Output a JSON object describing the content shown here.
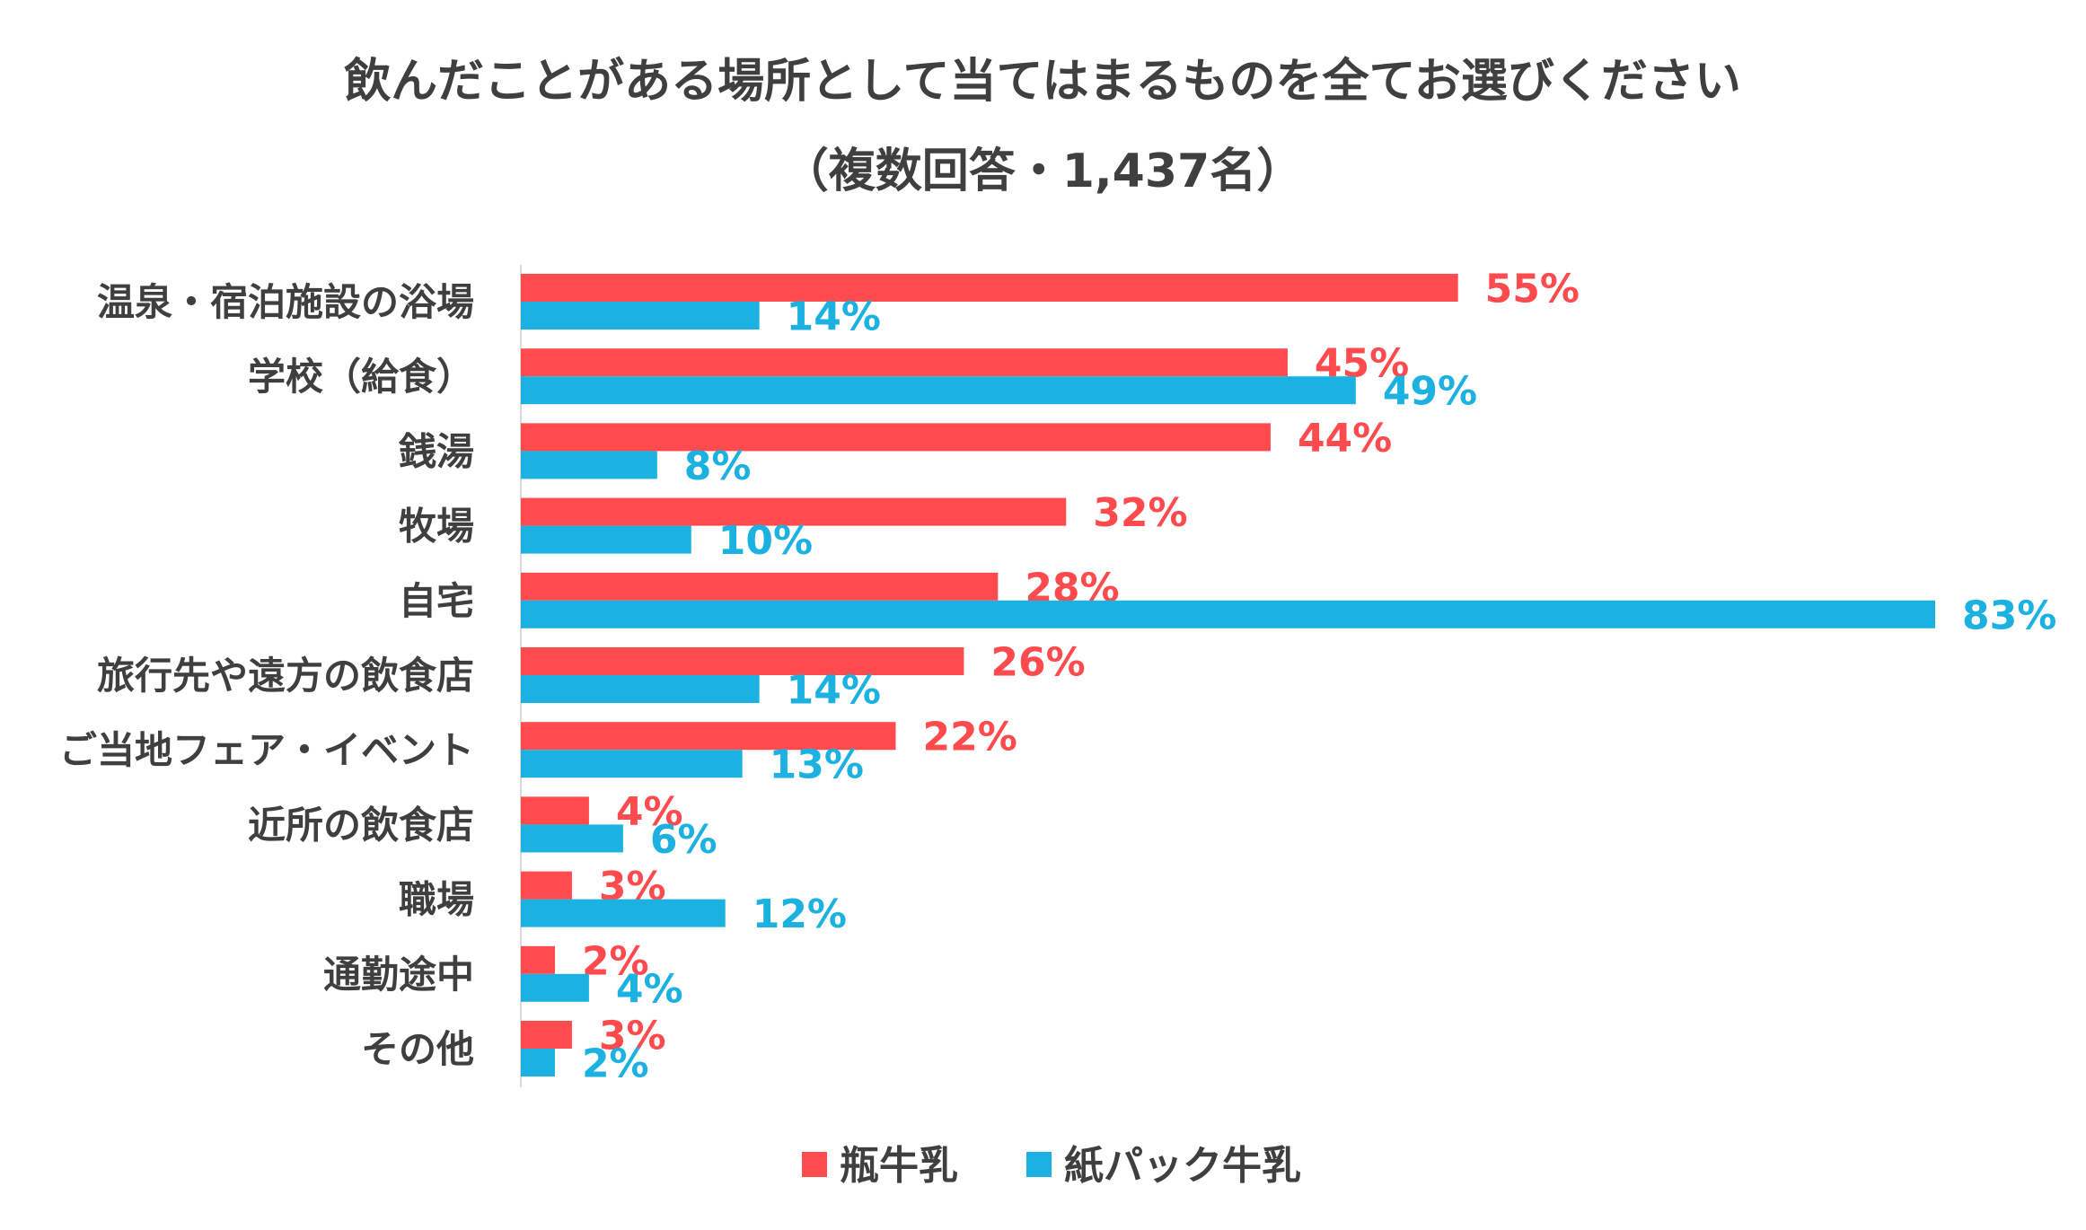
{
  "colors": {
    "bottle": "#FF4B4E",
    "pack": "#1BB1E0",
    "text": "#3f3f3f",
    "axis": "#d9d9d9"
  },
  "chart_data": {
    "type": "bar",
    "orientation": "horizontal",
    "title": "飲んだことがある場所として当てはまるものを全てお選びください",
    "subtitle": "（複数回答・1,437名）",
    "categories": [
      "温泉・宿泊施設の浴場",
      "学校（給食）",
      "銭湯",
      "牧場",
      "自宅",
      "旅行先や遠方の飲食店",
      "ご当地フェア・イベント",
      "近所の飲食店",
      "職場",
      "通勤途中",
      "その他"
    ],
    "series": [
      {
        "name": "瓶牛乳",
        "values": [
          55,
          45,
          44,
          32,
          28,
          26,
          22,
          4,
          3,
          2,
          3
        ],
        "labels": [
          "55%",
          "45%",
          "44%",
          "32%",
          "28%",
          "26%",
          "22%",
          "4%",
          "3%",
          "2%",
          "3%"
        ]
      },
      {
        "name": "紙パック牛乳",
        "values": [
          14,
          49,
          8,
          10,
          83,
          14,
          13,
          6,
          12,
          4,
          2
        ],
        "labels": [
          "14%",
          "49%",
          "8%",
          "10%",
          "83%",
          "14%",
          "13%",
          "6%",
          "12%",
          "4%",
          "2%"
        ]
      }
    ],
    "xlim": [
      0,
      83
    ],
    "grid": false,
    "legend": "bottom-center"
  }
}
